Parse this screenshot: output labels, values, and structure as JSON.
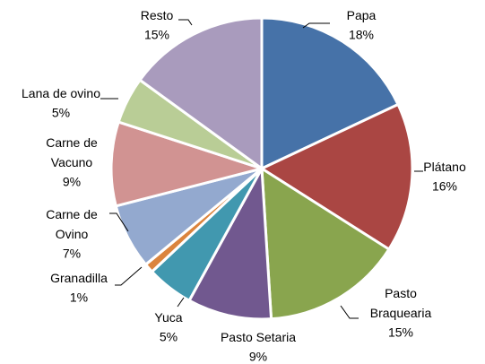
{
  "chart_data": {
    "type": "pie",
    "categories": [
      "Papa",
      "Plátano",
      "Pasto\nBraquearia",
      "Pasto Setaria",
      "Yuca",
      "Granadilla",
      "Carne de\nOvino",
      "Carne de\nVacuno",
      "Lana de ovino",
      "Resto"
    ],
    "values": [
      18,
      16,
      15,
      9,
      5,
      1,
      7,
      9,
      5,
      15
    ],
    "value_labels": [
      "18%",
      "16%",
      "15%",
      "9%",
      "5%",
      "1%",
      "7%",
      "9%",
      "5%",
      "15%"
    ],
    "colors": [
      "#4672a8",
      "#aa4643",
      "#89a54e",
      "#71588f",
      "#4198af",
      "#db843d",
      "#93a9cf",
      "#d19392",
      "#b9cd96",
      "#a99bbd"
    ]
  }
}
